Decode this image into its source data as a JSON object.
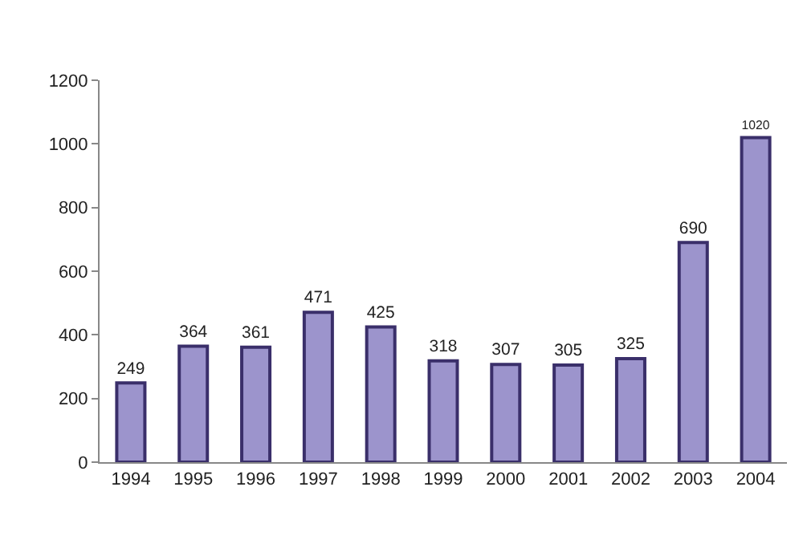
{
  "chart_data": {
    "type": "bar",
    "categories": [
      "1994",
      "1995",
      "1996",
      "1997",
      "1998",
      "1999",
      "2000",
      "2001",
      "2002",
      "2003",
      "2004"
    ],
    "values": [
      249,
      364,
      361,
      471,
      425,
      318,
      307,
      305,
      325,
      690,
      1020
    ],
    "color": "#9c94cc",
    "ylim": [
      0,
      1200
    ],
    "yticks": [
      0,
      200,
      400,
      600,
      800,
      1000,
      1200
    ],
    "grid": false,
    "data_labels": true,
    "legend": false
  }
}
